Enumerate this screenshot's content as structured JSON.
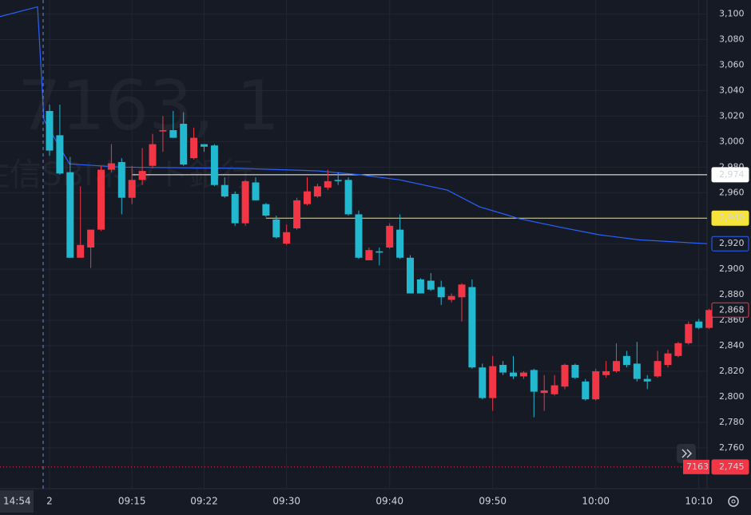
{
  "chart_data": {
    "type": "candlestick",
    "watermark": [
      "7163, 1",
      "住信SBIネット銀行"
    ],
    "categories": [
      "2",
      null,
      null,
      null,
      null,
      null,
      null,
      null,
      "09:15",
      null,
      null,
      null,
      null,
      null,
      null,
      "09:22",
      null,
      null,
      null,
      null,
      null,
      null,
      null,
      "09:30",
      null,
      null,
      null,
      null,
      null,
      null,
      null,
      null,
      null,
      "09:40",
      null,
      null,
      null,
      null,
      null,
      null,
      null,
      null,
      null,
      "09:50",
      null,
      null,
      null,
      null,
      null,
      null,
      null,
      null,
      null,
      "10:00",
      null,
      null,
      null,
      null,
      null,
      null,
      null,
      null,
      null,
      "10:10",
      null
    ],
    "open": [
      3024,
      3005,
      2976,
      2909,
      2917,
      2931,
      2978,
      2984,
      2956,
      2970,
      2981,
      3008,
      3009,
      3014,
      2987,
      2998,
      2997,
      2966,
      2959,
      2936,
      2968,
      2951,
      2939,
      2920,
      2932,
      2951,
      2957,
      2964,
      2970,
      2970,
      2943,
      2907,
      2914,
      2917,
      2931,
      2909,
      2892,
      2891,
      2886,
      2876,
      2878,
      2886,
      2823,
      2799,
      2825,
      2819,
      2816,
      2821,
      2803,
      2802,
      2808,
      2825,
      2812,
      2798,
      2817,
      2820,
      2832,
      2826,
      2814,
      2816,
      2825,
      2832,
      2842,
      2859,
      2854
    ],
    "high": [
      3029,
      3029,
      2988,
      2965,
      2931,
      2981,
      2998,
      2987,
      2981,
      2995,
      3006,
      3020,
      3024,
      3023,
      3011,
      2998,
      2998,
      2972,
      2961,
      2970,
      2972,
      2952,
      2942,
      2935,
      2956,
      2972,
      2967,
      2978,
      2976,
      2972,
      2946,
      2917,
      2917,
      2936,
      2943,
      2911,
      2893,
      2897,
      2891,
      2881,
      2889,
      2892,
      2826,
      2832,
      2828,
      2832,
      2820,
      2822,
      2817,
      2817,
      2826,
      2826,
      2814,
      2822,
      2828,
      2842,
      2836,
      2843,
      2817,
      2836,
      2837,
      2843,
      2859,
      2861,
      2869
    ],
    "low": [
      2989,
      2974,
      2909,
      2909,
      2901,
      2930,
      2976,
      2943,
      2951,
      2966,
      2979,
      2992,
      3003,
      2981,
      2986,
      2992,
      2965,
      2956,
      2934,
      2934,
      2954,
      2941,
      2924,
      2919,
      2931,
      2950,
      2956,
      2962,
      2966,
      2942,
      2908,
      2907,
      2903,
      2916,
      2908,
      2881,
      2881,
      2883,
      2872,
      2874,
      2859,
      2822,
      2798,
      2789,
      2817,
      2814,
      2814,
      2784,
      2789,
      2801,
      2806,
      2814,
      2797,
      2797,
      2815,
      2819,
      2823,
      2812,
      2806,
      2815,
      2823,
      2831,
      2841,
      2853,
      2853
    ],
    "close": [
      2993,
      2975,
      2909,
      2919,
      2931,
      2978,
      2983,
      2956,
      2970,
      2977,
      2998,
      3009,
      3003,
      2982,
      3003,
      2996,
      2966,
      2957,
      2936,
      2969,
      2954,
      2942,
      2925,
      2929,
      2954,
      2961,
      2965,
      2969,
      2969,
      2943,
      2909,
      2915,
      2913,
      2934,
      2909,
      2881,
      2881,
      2884,
      2878,
      2879,
      2888,
      2823,
      2799,
      2824,
      2819,
      2816,
      2819,
      2804,
      2805,
      2809,
      2825,
      2815,
      2798,
      2820,
      2820,
      2828,
      2825,
      2814,
      2812,
      2828,
      2834,
      2842,
      2857,
      2854,
      2868
    ],
    "up_color": "#f23645",
    "down_color": "#22b8cf",
    "line": {
      "color": "#2962ff",
      "x": [
        -4.81,
        -1.16,
        -0.54,
        1.94,
        6.8,
        18.4,
        26.2,
        30.1,
        34,
        38.6,
        41.7,
        45.6,
        49.5,
        53.3,
        57.2,
        63.8
      ],
      "values": [
        3098,
        3105.6,
        3017,
        2982.5,
        2980,
        2979,
        2977,
        2974,
        2970,
        2962,
        2949,
        2939.6,
        2933,
        2927,
        2923,
        2920
      ],
      "last_label": {
        "value": 2920,
        "label": "2,920"
      }
    },
    "price_lines": [
      {
        "value": 2974,
        "label": "2,974",
        "color": "#ffffff"
      },
      {
        "value": 2940,
        "label": "2,940",
        "color": "#f7e43b"
      }
    ],
    "last_price": {
      "value": 2868,
      "label": "2,868"
    },
    "crosshair": {
      "time": "14:54",
      "x": -0.62,
      "symbol": "7163",
      "price": {
        "value": 2745,
        "label": "2,745"
      }
    },
    "ylim": [
      2728,
      3111
    ],
    "yticks": [
      {
        "value": 2760,
        "label": "2,760"
      },
      {
        "value": 2780,
        "label": "2,780"
      },
      {
        "value": 2800,
        "label": "2,800"
      },
      {
        "value": 2820,
        "label": "2,820"
      },
      {
        "value": 2840,
        "label": "2,840"
      },
      {
        "value": 2860,
        "label": "2,860"
      },
      {
        "value": 2880,
        "label": "2,880"
      },
      {
        "value": 2900,
        "label": "2,900"
      },
      {
        "value": 2920,
        "label": "2,920"
      },
      {
        "value": 2940,
        "label": "2,940"
      },
      {
        "value": 2960,
        "label": "2,960"
      },
      {
        "value": 2980,
        "label": "2,980"
      },
      {
        "value": 3000,
        "label": "3,000"
      },
      {
        "value": 3020,
        "label": "3,020"
      },
      {
        "value": 3040,
        "label": "3,040"
      },
      {
        "value": 3060,
        "label": "3,060"
      },
      {
        "value": 3080,
        "label": "3,080"
      },
      {
        "value": 3100,
        "label": "3,100"
      }
    ],
    "grid": true
  }
}
